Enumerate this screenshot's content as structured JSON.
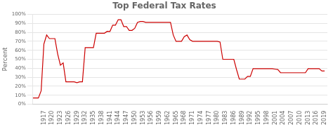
{
  "chart_data": {
    "type": "line",
    "title": "Top Federal Tax Rates",
    "y_label": "Percent",
    "color": "#cc0000",
    "x": [
      1913,
      1914,
      1915,
      1916,
      1917,
      1918,
      1919,
      1920,
      1921,
      1922,
      1923,
      1924,
      1925,
      1926,
      1927,
      1928,
      1929,
      1930,
      1931,
      1932,
      1933,
      1934,
      1935,
      1936,
      1937,
      1938,
      1939,
      1940,
      1941,
      1942,
      1943,
      1944,
      1945,
      1946,
      1947,
      1948,
      1949,
      1950,
      1951,
      1952,
      1953,
      1954,
      1955,
      1956,
      1957,
      1958,
      1959,
      1960,
      1961,
      1962,
      1963,
      1964,
      1965,
      1966,
      1967,
      1968,
      1969,
      1970,
      1971,
      1972,
      1973,
      1974,
      1975,
      1976,
      1977,
      1978,
      1979,
      1980,
      1981,
      1982,
      1983,
      1984,
      1985,
      1986,
      1987,
      1988,
      1989,
      1990,
      1991,
      1992,
      1993,
      1994,
      1995,
      1996,
      1997,
      1998,
      1999,
      2000,
      2001,
      2002,
      2003,
      2004,
      2005,
      2006,
      2007,
      2008,
      2009,
      2010,
      2011,
      2012,
      2013,
      2014,
      2015,
      2016,
      2017,
      2018,
      2019
    ],
    "values": [
      7,
      7,
      7,
      15,
      67,
      77,
      73,
      73,
      73,
      56,
      43.5,
      46,
      25,
      25,
      25,
      25,
      24,
      25,
      25,
      63,
      63,
      63,
      63,
      79,
      79,
      79,
      79,
      81.1,
      81,
      88,
      88,
      94,
      94,
      86.45,
      86.45,
      82.13,
      82.13,
      84.36,
      91,
      92,
      92,
      91,
      91,
      91,
      91,
      91,
      91,
      91,
      91,
      91,
      91,
      77,
      70,
      70,
      70,
      75.25,
      77,
      71.75,
      70,
      70,
      70,
      70,
      70,
      70,
      70,
      70,
      70,
      70,
      69.13,
      50,
      50,
      50,
      50,
      50,
      38.5,
      28,
      28,
      28,
      31,
      31,
      39.6,
      39.6,
      39.6,
      39.6,
      39.6,
      39.6,
      39.6,
      39.6,
      39.1,
      38.6,
      35,
      35,
      35,
      35,
      35,
      35,
      35,
      35,
      35,
      35,
      39.6,
      39.6,
      39.6,
      39.6,
      39.6,
      37,
      37
    ],
    "xlim": [
      1913,
      2020
    ],
    "xticks": [
      1917,
      1920,
      1923,
      1926,
      1929,
      1932,
      1935,
      1938,
      1941,
      1944,
      1947,
      1950,
      1953,
      1956,
      1959,
      1962,
      1965,
      1968,
      1971,
      1974,
      1977,
      1980,
      1983,
      1986,
      1989,
      1992,
      1995,
      1998,
      2001,
      2004,
      2007,
      2010,
      2013,
      2016,
      2019
    ],
    "ylim": [
      0,
      100
    ],
    "yticks": [
      {
        "value": 0,
        "label": "0%"
      },
      {
        "value": 10,
        "label": "10%"
      },
      {
        "value": 20,
        "label": "20%"
      },
      {
        "value": 30,
        "label": "30%"
      },
      {
        "value": 40,
        "label": "40%"
      },
      {
        "value": 50,
        "label": "50%"
      },
      {
        "value": 60,
        "label": "60%"
      },
      {
        "value": 70,
        "label": "70%"
      },
      {
        "value": 80,
        "label": "80%"
      },
      {
        "value": 90,
        "label": "90%"
      },
      {
        "value": 100,
        "label": "100%"
      }
    ],
    "grid": "y"
  }
}
